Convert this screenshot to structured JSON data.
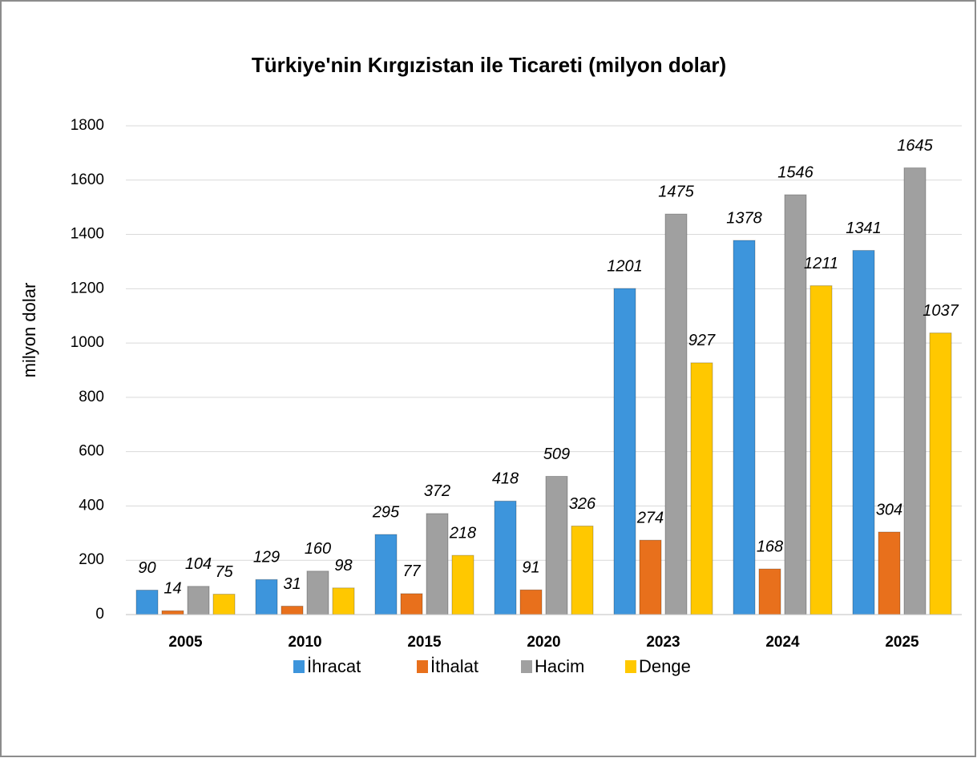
{
  "chart_data": {
    "type": "bar",
    "title": "Türkiye'nin Kırgızistan ile Ticareti (milyon dolar)",
    "y_label": "milyon dolar",
    "categories": [
      "2005",
      "2010",
      "2015",
      "2020",
      "2023",
      "2024",
      "2025"
    ],
    "series": [
      {
        "name": "İhracat",
        "color": "#3d95dc",
        "values": [
          90,
          129,
          295,
          418,
          1201,
          1378,
          1341
        ]
      },
      {
        "name": "İthalat",
        "color": "#e8701c",
        "values": [
          14,
          31,
          77,
          91,
          274,
          168,
          304
        ]
      },
      {
        "name": "Hacim",
        "color": "#a0a0a0",
        "values": [
          104,
          160,
          372,
          509,
          1475,
          1546,
          1645
        ]
      },
      {
        "name": "Denge",
        "color": "#ffc800",
        "values": [
          75,
          98,
          218,
          326,
          927,
          1211,
          1037
        ]
      }
    ],
    "ylim": [
      0,
      1800
    ],
    "yticks": [
      0,
      200,
      400,
      600,
      800,
      1000,
      1200,
      1400,
      1600,
      1800
    ],
    "grid": true,
    "legend": "bottom"
  }
}
